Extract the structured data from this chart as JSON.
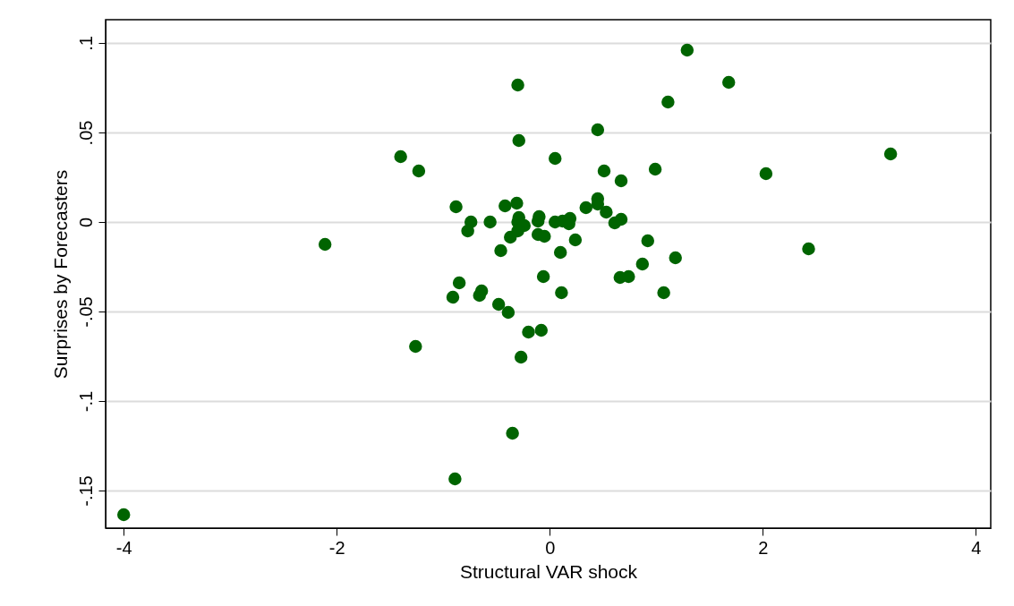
{
  "chart_data": {
    "type": "scatter",
    "xlabel": "Structural VAR shock",
    "ylabel": "Surprises by Forecasters",
    "xlim": [
      -4.17,
      4.14
    ],
    "xticks": [
      -4,
      -2,
      0,
      2,
      4
    ],
    "ylim": [
      -0.171,
      0.113
    ],
    "yticks": [
      {
        "value": -0.15,
        "label": "-.15"
      },
      {
        "value": -0.1,
        "label": "-.1"
      },
      {
        "value": -0.05,
        "label": "-.05"
      },
      {
        "value": 0,
        "label": "0"
      },
      {
        "value": 0.05,
        "label": ".05"
      },
      {
        "value": 0.1,
        "label": ".1"
      }
    ],
    "grid": "y",
    "marker": "circle",
    "series": [
      {
        "color": "#006400",
        "x": [
          -4,
          -2.11,
          -1.4,
          -1.23,
          -1.26,
          -0.89,
          -0.35,
          -0.29,
          -0.3,
          0.05,
          0.45,
          0.51,
          1.11,
          1.29,
          1.68,
          2.03,
          2.43,
          3.2,
          -0.88,
          -0.74,
          -0.77,
          -0.56,
          -0.42,
          -0.31,
          -0.29,
          -0.3,
          -0.24,
          -0.3,
          -0.37,
          -0.46,
          -0.1,
          -0.11,
          -0.11,
          -0.05,
          0.05,
          0.12,
          0.19,
          0.18,
          0.1,
          0.24,
          0.34,
          0.45,
          0.45,
          0.53,
          0.61,
          0.67,
          0.67,
          0.99,
          0.92,
          1.18,
          0.87,
          0.66,
          0.74,
          1.07,
          -0.06,
          0.11,
          -0.85,
          -0.91,
          -0.64,
          -0.66,
          -0.48,
          -0.39,
          -0.2,
          -0.08,
          -0.27
        ],
        "values": [
          -0.1635,
          -0.0125,
          0.0365,
          0.0285,
          -0.0695,
          -0.1435,
          -0.118,
          0.0455,
          0.0765,
          0.0355,
          0.0515,
          0.0285,
          0.067,
          0.096,
          0.078,
          0.027,
          -0.015,
          0.038,
          0.0085,
          0,
          -0.005,
          0,
          0.009,
          0.0105,
          0.0025,
          0,
          -0.002,
          -0.005,
          -0.0085,
          -0.016,
          0.003,
          0.0005,
          -0.007,
          -0.008,
          0,
          0.0005,
          0.002,
          -0.001,
          -0.017,
          -0.01,
          0.008,
          0.013,
          0.01,
          0.0055,
          -0.0005,
          0.0015,
          0.023,
          0.0295,
          -0.0105,
          -0.02,
          -0.0235,
          -0.031,
          -0.0305,
          -0.0395,
          -0.0305,
          -0.0395,
          -0.034,
          -0.042,
          -0.0385,
          -0.041,
          -0.046,
          -0.0505,
          -0.0615,
          -0.0605,
          -0.0755
        ]
      }
    ]
  }
}
